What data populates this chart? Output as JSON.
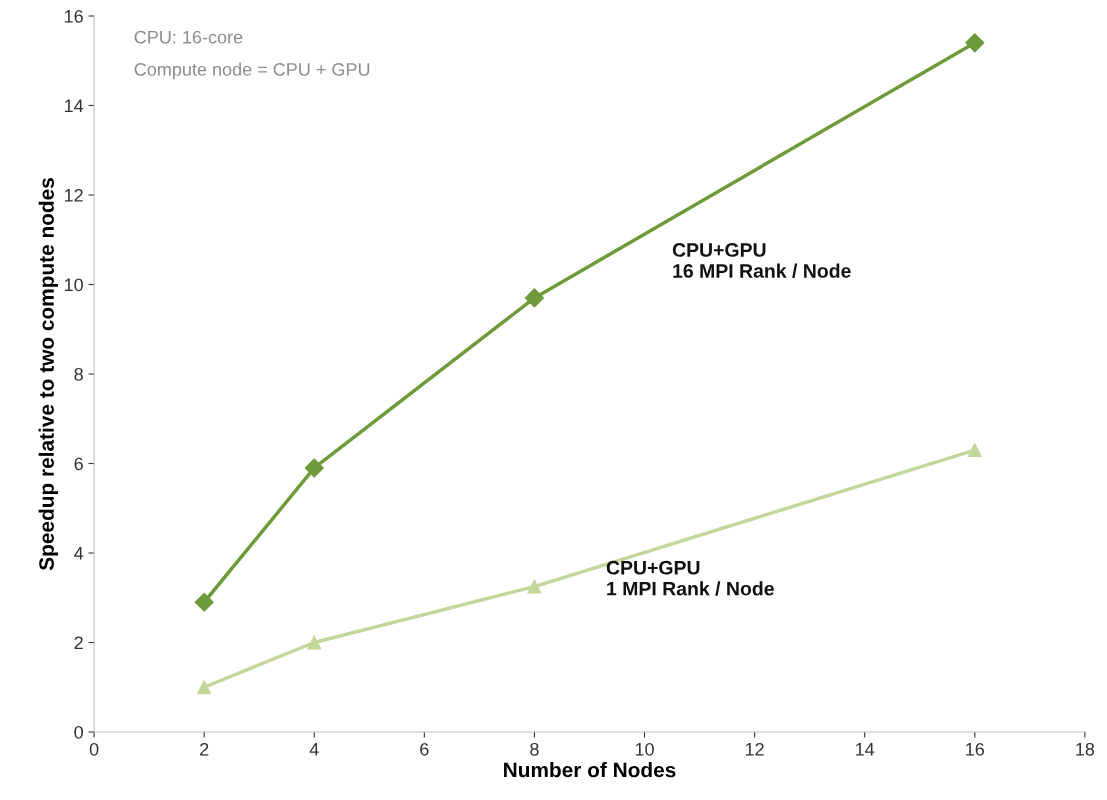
{
  "chart_data": {
    "type": "line",
    "xlabel": "Number of Nodes",
    "ylabel": "Speedup relative to two compute nodes",
    "x": [
      2,
      4,
      8,
      16
    ],
    "series": [
      {
        "name": "CPU+GPU\n16 MPI Rank / Node",
        "color": "#6f9a3a",
        "marker": "diamond",
        "values": [
          2.9,
          5.9,
          9.7,
          15.4
        ]
      },
      {
        "name": "CPU+GPU\n1 MPI Rank / Node",
        "color": "#c3d69b",
        "marker": "triangle",
        "values": [
          1.0,
          2.0,
          3.25,
          6.3
        ]
      }
    ],
    "annotations": [
      "CPU: 16-core",
      "Compute node = CPU + GPU"
    ],
    "xlim": [
      0,
      18
    ],
    "xticks": [
      0,
      2,
      4,
      6,
      8,
      10,
      12,
      14,
      16,
      18
    ],
    "ylim": [
      0,
      16
    ],
    "yticks": [
      0,
      2,
      4,
      6,
      8,
      10,
      12,
      14,
      16
    ],
    "grid": false,
    "legend": false,
    "line_style": "solid"
  }
}
